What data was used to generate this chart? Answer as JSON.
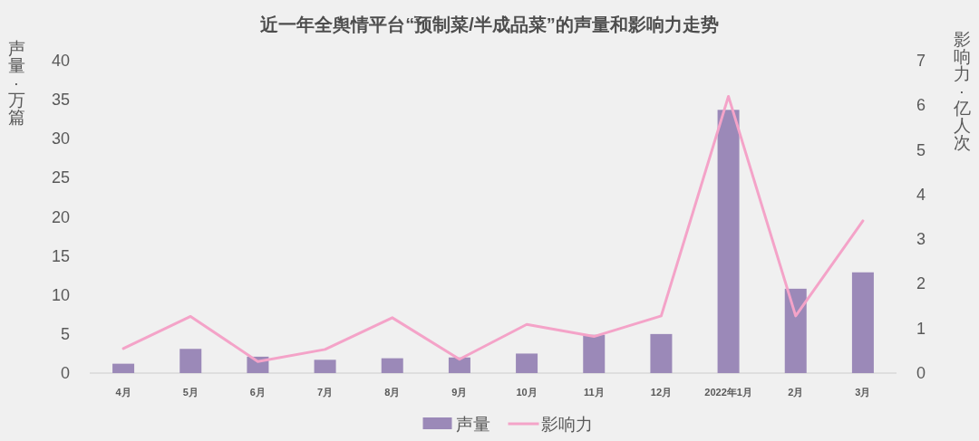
{
  "chart_data": {
    "type": "bar",
    "title": "近一年全舆情平台“预制菜/半成品菜”的声量和影响力走势",
    "ylabel": "声量·万篇",
    "y2label": "影响力·亿人次",
    "categories": [
      "4月",
      "5月",
      "6月",
      "7月",
      "8月",
      "9月",
      "10月",
      "11月",
      "12月",
      "2022年1月",
      "2月",
      "3月"
    ],
    "series": [
      {
        "name": "声量",
        "color": "#9b89b8",
        "values": [
          1.2,
          3.1,
          2.1,
          1.7,
          1.9,
          2.0,
          2.5,
          4.9,
          5.0,
          33.7,
          10.8,
          12.9
        ]
      },
      {
        "name": "影响力",
        "type": "line",
        "axis": "y2",
        "color": "#f4a3c8",
        "values": [
          0.55,
          1.27,
          0.26,
          0.53,
          1.24,
          0.31,
          1.09,
          0.82,
          1.28,
          6.2,
          1.28,
          3.41
        ]
      }
    ],
    "ylim": [
      0,
      40
    ],
    "yticks": [
      0,
      5,
      10,
      15,
      20,
      25,
      30,
      35,
      40
    ],
    "y2lim": [
      0,
      7
    ],
    "y2ticks": [
      0,
      1,
      2,
      3,
      4,
      5,
      6,
      7
    ],
    "legend": "bottom"
  }
}
